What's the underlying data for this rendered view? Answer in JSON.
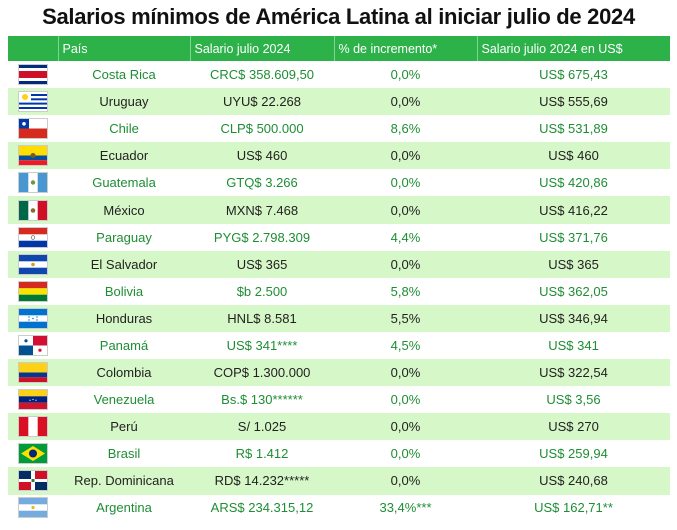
{
  "title": "Salarios mínimos de América Latina al iniciar julio de 2024",
  "headers": [
    "País",
    "Salario julio 2024",
    "% de incremento*",
    "Salario julio 2024 en US$"
  ],
  "rows": [
    {
      "pais": "Costa Rica",
      "salario": "CRC$ 358.609,50",
      "incremento": "0,0%",
      "usd": "US$ 675,43",
      "flag": "costa-rica-flag"
    },
    {
      "pais": "Uruguay",
      "salario": "UYU$ 22.268",
      "incremento": "0,0%",
      "usd": "US$ 555,69",
      "flag": "uruguay-flag"
    },
    {
      "pais": "Chile",
      "salario": "CLP$ 500.000",
      "incremento": "8,6%",
      "usd": "US$ 531,89",
      "flag": "chile-flag"
    },
    {
      "pais": "Ecuador",
      "salario": "US$ 460",
      "incremento": "0,0%",
      "usd": "US$ 460",
      "flag": "ecuador-flag"
    },
    {
      "pais": "Guatemala",
      "salario": "GTQ$ 3.266",
      "incremento": "0,0%",
      "usd": "US$ 420,86",
      "flag": "guatemala-flag"
    },
    {
      "pais": "México",
      "salario": "MXN$ 7.468",
      "incremento": "0,0%",
      "usd": "US$ 416,22",
      "flag": "mexico-flag"
    },
    {
      "pais": "Paraguay",
      "salario": "PYG$ 2.798.309",
      "incremento": "4,4%",
      "usd": "US$ 371,76",
      "flag": "paraguay-flag"
    },
    {
      "pais": "El Salvador",
      "salario": "US$ 365",
      "incremento": "0,0%",
      "usd": "US$ 365",
      "flag": "el-salvador-flag"
    },
    {
      "pais": "Bolivia",
      "salario": "$b 2.500",
      "incremento": "5,8%",
      "usd": "US$ 362,05",
      "flag": "bolivia-flag"
    },
    {
      "pais": "Honduras",
      "salario": "HNL$ 8.581",
      "incremento": "5,5%",
      "usd": "US$ 346,94",
      "flag": "honduras-flag"
    },
    {
      "pais": "Panamá",
      "salario": "US$ 341****",
      "incremento": "4,5%",
      "usd": "US$ 341",
      "flag": "panama-flag"
    },
    {
      "pais": "Colombia",
      "salario": "COP$ 1.300.000",
      "incremento": "0,0%",
      "usd": "US$ 322,54",
      "flag": "colombia-flag"
    },
    {
      "pais": "Venezuela",
      "salario": "Bs.$ 130******",
      "incremento": "0,0%",
      "usd": "US$ 3,56",
      "flag": "venezuela-flag"
    },
    {
      "pais": "Perú",
      "salario": "S/ 1.025",
      "incremento": "0,0%",
      "usd": "US$ 270",
      "flag": "peru-flag"
    },
    {
      "pais": "Brasil",
      "salario": "R$ 1.412",
      "incremento": "0,0%",
      "usd": "US$ 259,94",
      "flag": "brazil-flag"
    },
    {
      "pais": "Rep. Dominicana",
      "salario": "RD$ 14.232*****",
      "incremento": "0,0%",
      "usd": "US$ 240,68",
      "flag": "dominican-republic-flag"
    },
    {
      "pais": "Argentina",
      "salario": "ARS$ 234.315,12",
      "incremento": "33,4%***",
      "usd": "US$ 162,71**",
      "flag": "argentina-flag"
    }
  ],
  "colors": {
    "header_green": "#2db24a",
    "stripe_green": "#d6f7c8",
    "text_green": "#1e8e34"
  }
}
